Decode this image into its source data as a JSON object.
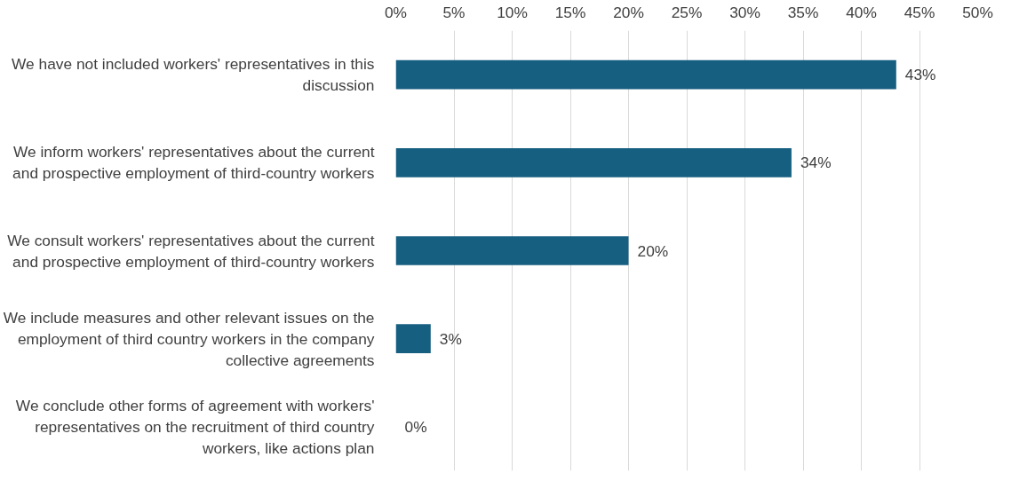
{
  "chart_data": {
    "type": "bar",
    "orientation": "horizontal",
    "categories": [
      "We have not included workers' representatives in this discussion",
      "We inform workers' representatives about the current and prospective employment of third-country workers",
      "We consult workers' representatives about the current and prospective employment of third-country workers",
      "We include measures and other relevant issues on the employment of third country workers in the company collective agreements",
      "We conclude other forms of agreement with workers' representatives on the recruitment of third country workers, like actions plan"
    ],
    "values": [
      43,
      34,
      20,
      3,
      0
    ],
    "value_labels": [
      "43%",
      "34%",
      "20%",
      "3%",
      "0%"
    ],
    "color": "#175f81",
    "xlim": [
      0,
      50
    ],
    "xticks": [
      {
        "value": 0,
        "label": "0%"
      },
      {
        "value": 5,
        "label": "5%"
      },
      {
        "value": 10,
        "label": "10%"
      },
      {
        "value": 15,
        "label": "15%"
      },
      {
        "value": 20,
        "label": "20%"
      },
      {
        "value": 25,
        "label": "25%"
      },
      {
        "value": 30,
        "label": "30%"
      },
      {
        "value": 35,
        "label": "35%"
      },
      {
        "value": 40,
        "label": "40%"
      },
      {
        "value": 45,
        "label": "45%"
      },
      {
        "value": 50,
        "label": "50%"
      }
    ],
    "grid": "x"
  }
}
